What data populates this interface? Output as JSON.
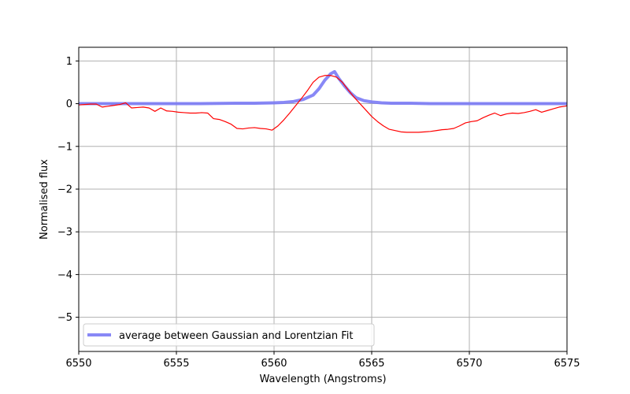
{
  "chart_data": {
    "type": "line",
    "title": "",
    "xlabel": "Wavelength (Angstroms)",
    "ylabel": "Normalised flux",
    "xlim": [
      6550,
      6575
    ],
    "ylim": [
      -5.8,
      1.32
    ],
    "xticks": [
      6550,
      6555,
      6560,
      6565,
      6570,
      6575
    ],
    "yticks": [
      1,
      0,
      -1,
      -2,
      -3,
      -4,
      -5
    ],
    "grid": true,
    "legend_position": "lower-left",
    "series": [
      {
        "name": "",
        "color": "#ff0000",
        "x": [
          6550.0,
          6550.3,
          6550.6,
          6550.9,
          6551.2,
          6551.5,
          6551.8,
          6552.1,
          6552.4,
          6552.7,
          6553.0,
          6553.3,
          6553.6,
          6553.9,
          6554.2,
          6554.5,
          6554.8,
          6555.1,
          6555.4,
          6555.7,
          6556.0,
          6556.3,
          6556.6,
          6556.9,
          6557.2,
          6557.5,
          6557.8,
          6558.1,
          6558.4,
          6558.7,
          6559.0,
          6559.3,
          6559.6,
          6559.9,
          6560.2,
          6560.5,
          6560.8,
          6561.1,
          6561.4,
          6561.7,
          6562.0,
          6562.3,
          6562.6,
          6562.9,
          6563.2,
          6563.5,
          6563.8,
          6564.1,
          6564.4,
          6564.7,
          6565.0,
          6565.3,
          6565.6,
          6565.9,
          6566.2,
          6566.5,
          6566.8,
          6567.1,
          6567.4,
          6567.7,
          6568.0,
          6568.3,
          6568.6,
          6568.9,
          6569.2,
          6569.5,
          6569.8,
          6570.1,
          6570.4,
          6570.7,
          6571.0,
          6571.3,
          6571.6,
          6571.9,
          6572.2,
          6572.5,
          6572.8,
          6573.1,
          6573.4,
          6573.7,
          6574.0,
          6574.3,
          6574.6,
          6574.9,
          6575.0
        ],
        "y": [
          -0.03,
          -0.02,
          -0.01,
          -0.01,
          -0.08,
          -0.06,
          -0.04,
          -0.02,
          0.02,
          -0.1,
          -0.09,
          -0.08,
          -0.1,
          -0.18,
          -0.1,
          -0.17,
          -0.18,
          -0.2,
          -0.21,
          -0.22,
          -0.22,
          -0.21,
          -0.22,
          -0.35,
          -0.37,
          -0.42,
          -0.48,
          -0.58,
          -0.59,
          -0.57,
          -0.56,
          -0.58,
          -0.59,
          -0.62,
          -0.52,
          -0.38,
          -0.22,
          -0.05,
          0.12,
          0.3,
          0.5,
          0.62,
          0.66,
          0.66,
          0.62,
          0.5,
          0.32,
          0.15,
          0.0,
          -0.15,
          -0.3,
          -0.42,
          -0.52,
          -0.6,
          -0.63,
          -0.66,
          -0.67,
          -0.67,
          -0.67,
          -0.66,
          -0.65,
          -0.63,
          -0.61,
          -0.6,
          -0.58,
          -0.52,
          -0.45,
          -0.42,
          -0.4,
          -0.33,
          -0.27,
          -0.22,
          -0.28,
          -0.24,
          -0.22,
          -0.23,
          -0.21,
          -0.18,
          -0.14,
          -0.2,
          -0.16,
          -0.12,
          -0.08,
          -0.06,
          -0.05
        ]
      },
      {
        "name": "average between Gaussian and Lorentzian Fit",
        "color": "#7b7bf5",
        "x": [
          6550.0,
          6552.0,
          6554.0,
          6556.0,
          6558.0,
          6559.0,
          6560.0,
          6560.5,
          6561.0,
          6561.5,
          6562.0,
          6562.3,
          6562.6,
          6562.9,
          6563.1,
          6563.3,
          6563.6,
          6563.9,
          6564.2,
          6564.6,
          6565.0,
          6565.5,
          6566.0,
          6567.0,
          6568.0,
          6570.0,
          6572.0,
          6575.0
        ],
        "y": [
          0.0,
          0.0,
          0.0,
          0.0,
          0.01,
          0.01,
          0.02,
          0.03,
          0.05,
          0.1,
          0.2,
          0.35,
          0.55,
          0.7,
          0.75,
          0.6,
          0.42,
          0.26,
          0.14,
          0.07,
          0.04,
          0.02,
          0.01,
          0.01,
          0.0,
          0.0,
          0.0,
          0.0
        ]
      }
    ]
  }
}
